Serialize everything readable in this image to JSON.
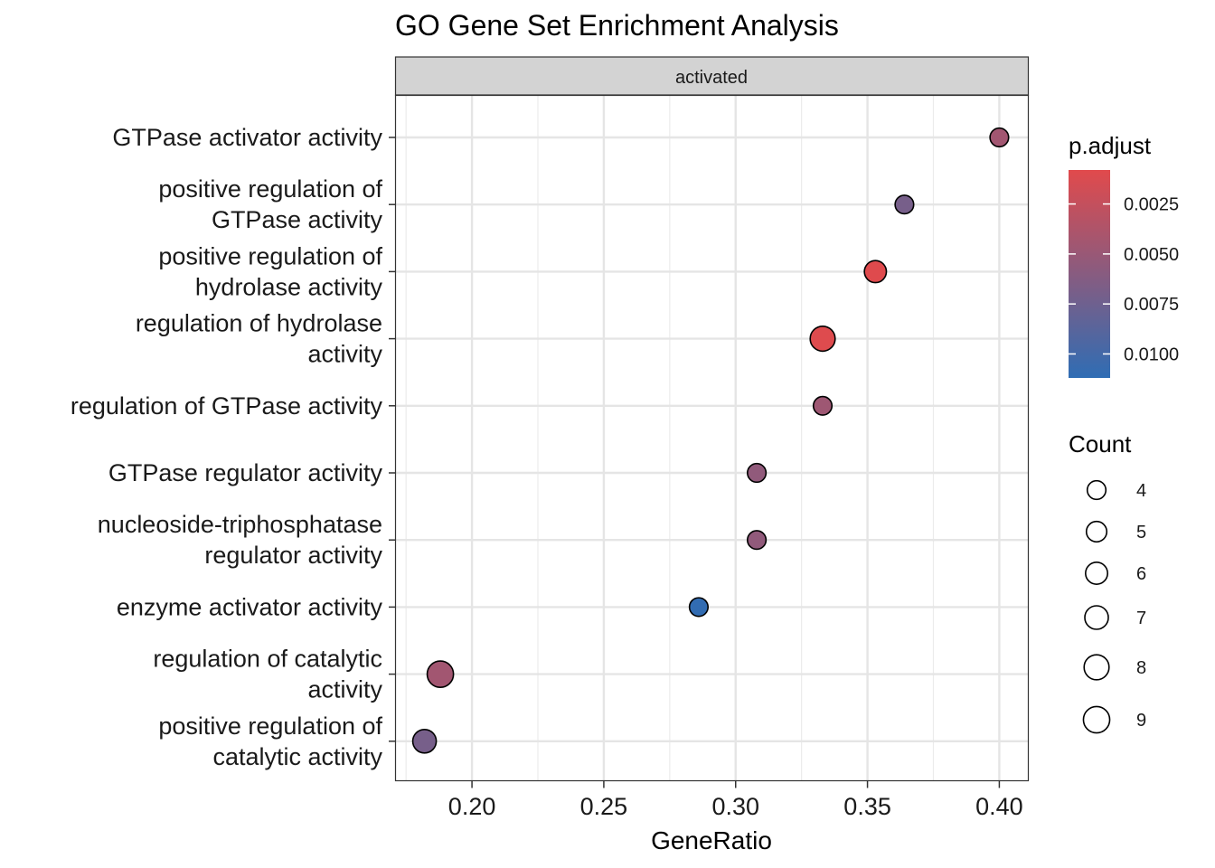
{
  "chart_data": {
    "type": "scatter",
    "title": "GO Gene Set Enrichment Analysis",
    "facet": "activated",
    "xlabel": "GeneRatio",
    "ylabel": "",
    "xlim": [
      0.171,
      0.411
    ],
    "xticks": [
      0.2,
      0.25,
      0.3,
      0.35,
      0.4
    ],
    "xtick_labels": [
      "0.20",
      "0.25",
      "0.30",
      "0.35",
      "0.40"
    ],
    "grid": true,
    "points": [
      {
        "term": [
          "GTPase activator activity"
        ],
        "gene_ratio": 0.4,
        "count": 4,
        "p_adjust": 0.0045
      },
      {
        "term": [
          "positive regulation of",
          "GTPase activity"
        ],
        "gene_ratio": 0.364,
        "count": 4,
        "p_adjust": 0.007
      },
      {
        "term": [
          "positive regulation of",
          "hydrolase activity"
        ],
        "gene_ratio": 0.353,
        "count": 6,
        "p_adjust": 0.0009
      },
      {
        "term": [
          "regulation of hydrolase",
          "activity"
        ],
        "gene_ratio": 0.333,
        "count": 8,
        "p_adjust": 0.001
      },
      {
        "term": [
          "regulation of GTPase activity"
        ],
        "gene_ratio": 0.333,
        "count": 4,
        "p_adjust": 0.0047
      },
      {
        "term": [
          "GTPase regulator activity"
        ],
        "gene_ratio": 0.308,
        "count": 4,
        "p_adjust": 0.0055
      },
      {
        "term": [
          "nucleoside-triphosphatase",
          "regulator activity"
        ],
        "gene_ratio": 0.308,
        "count": 4,
        "p_adjust": 0.0055
      },
      {
        "term": [
          "enzyme activator activity"
        ],
        "gene_ratio": 0.286,
        "count": 4,
        "p_adjust": 0.011
      },
      {
        "term": [
          "regulation of catalytic",
          "activity"
        ],
        "gene_ratio": 0.188,
        "count": 9,
        "p_adjust": 0.0045
      },
      {
        "term": [
          "positive regulation of",
          "catalytic activity"
        ],
        "gene_ratio": 0.182,
        "count": 7,
        "p_adjust": 0.007
      }
    ],
    "color_legend": {
      "title": "p.adjust",
      "range": [
        0.0008,
        0.0112
      ],
      "low_color": "#E14A4C",
      "high_color": "#2F6DB4",
      "ticks": [
        0.0025,
        0.005,
        0.0075,
        0.01
      ],
      "tick_labels": [
        "0.0025",
        "0.0050",
        "0.0075",
        "0.0100"
      ]
    },
    "size_legend": {
      "title": "Count",
      "values": [
        4,
        5,
        6,
        7,
        8,
        9
      ],
      "labels": [
        "4",
        "5",
        "6",
        "7",
        "8",
        "9"
      ]
    }
  }
}
